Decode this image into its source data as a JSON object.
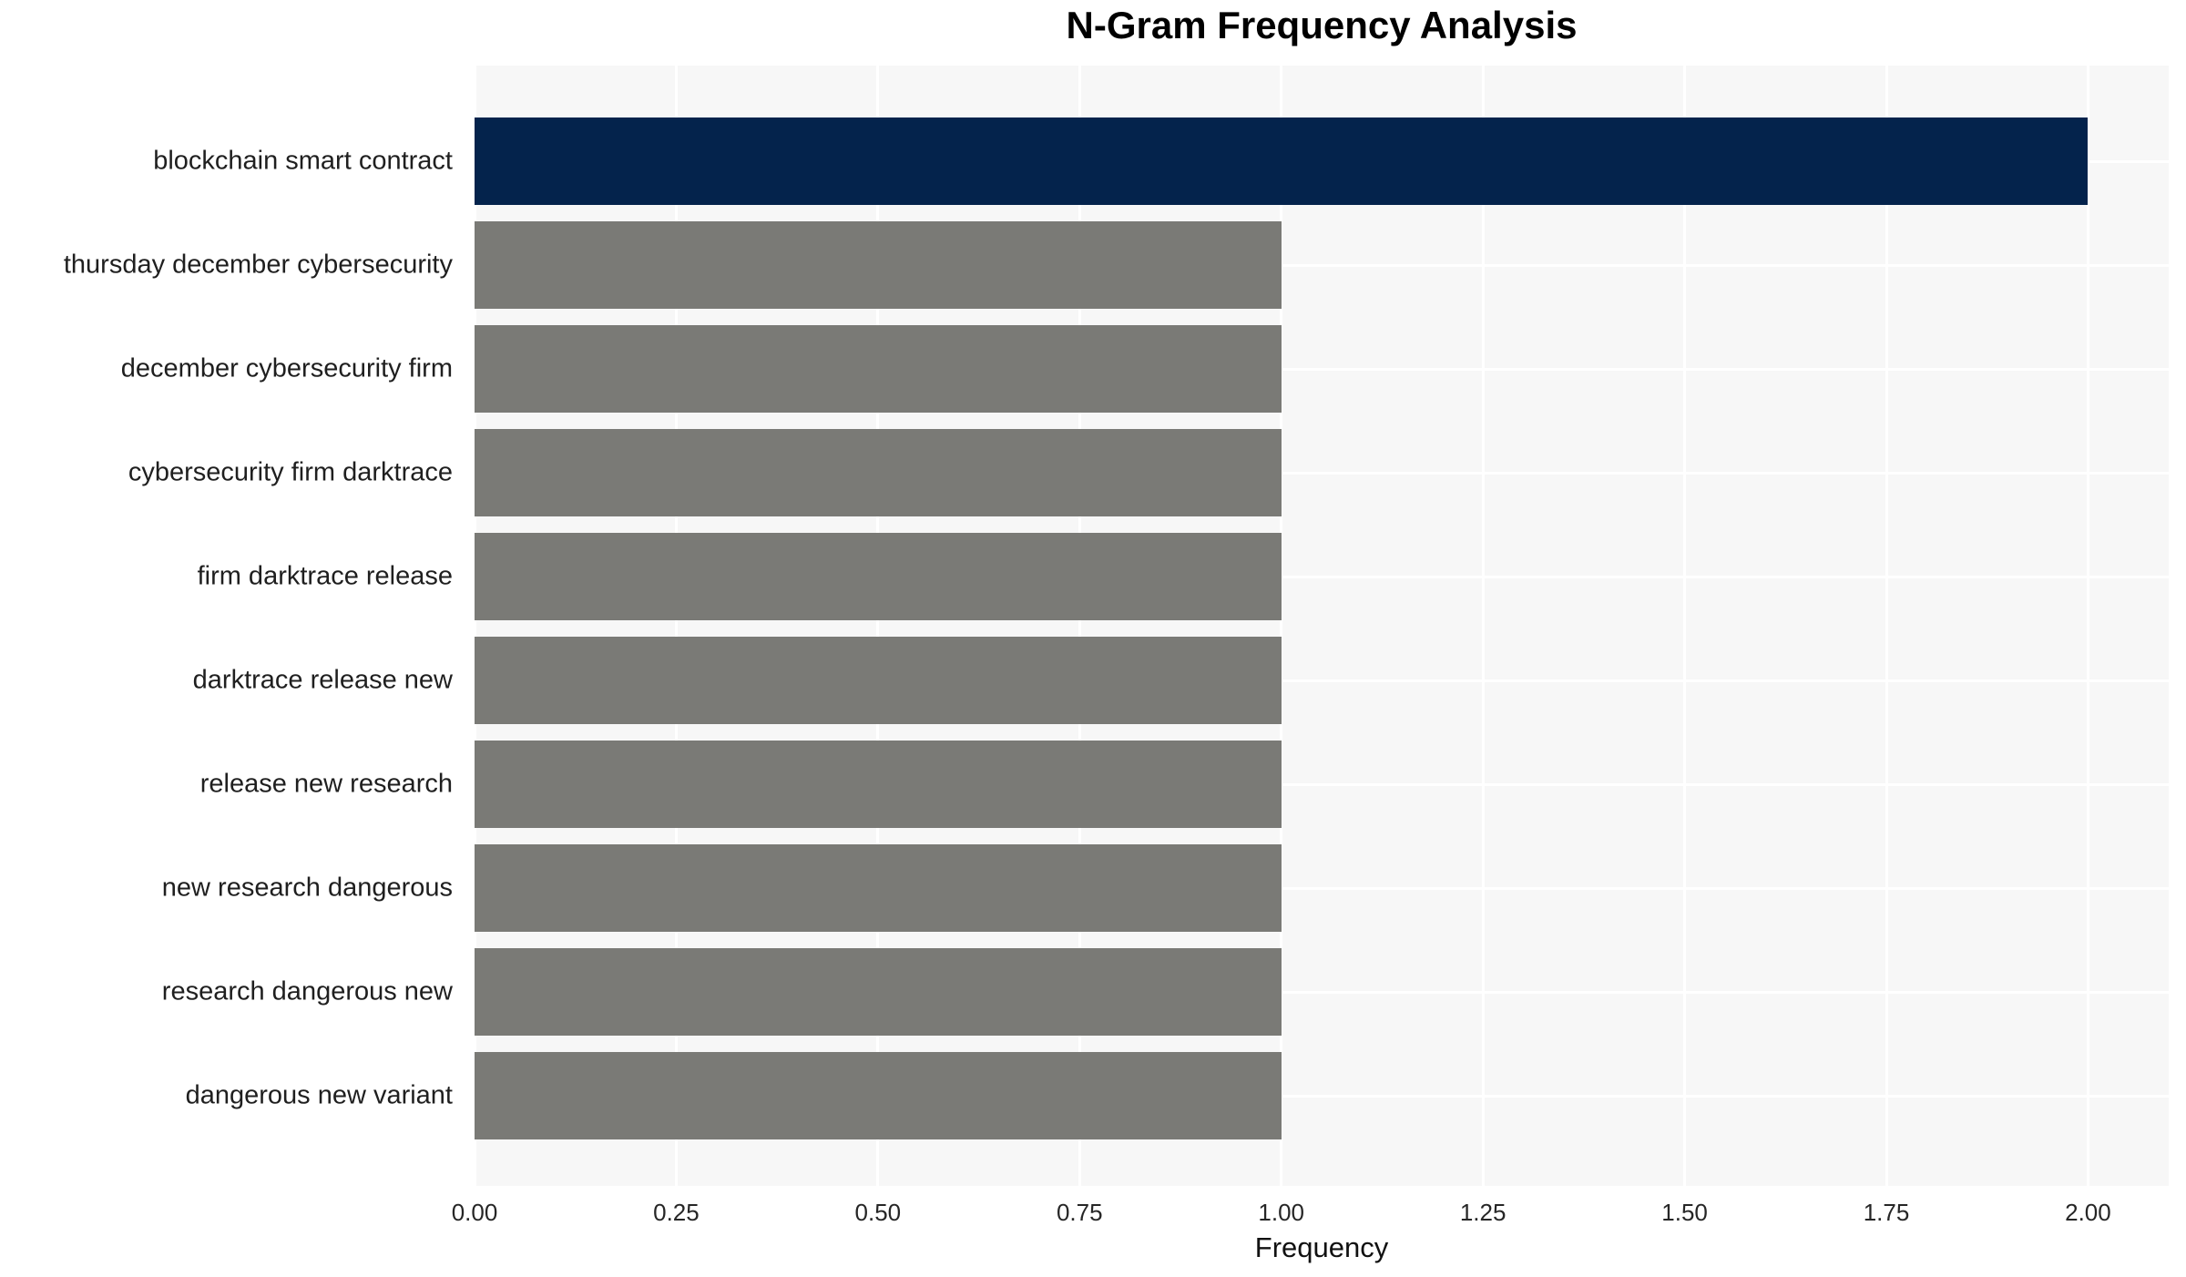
{
  "chart_data": {
    "type": "bar",
    "orientation": "horizontal",
    "title": "N-Gram Frequency Analysis",
    "xlabel": "Frequency",
    "ylabel": "",
    "categories": [
      "blockchain smart contract",
      "thursday december cybersecurity",
      "december cybersecurity firm",
      "cybersecurity firm darktrace",
      "firm darktrace release",
      "darktrace release new",
      "release new research",
      "new research dangerous",
      "research dangerous new",
      "dangerous new variant"
    ],
    "values": [
      2,
      1,
      1,
      1,
      1,
      1,
      1,
      1,
      1,
      1
    ],
    "bar_colors": [
      "#04234c",
      "#7a7a76",
      "#7a7a76",
      "#7a7a76",
      "#7a7a76",
      "#7a7a76",
      "#7a7a76",
      "#7a7a76",
      "#7a7a76",
      "#7a7a76"
    ],
    "x_ticks": [
      "0.00",
      "0.25",
      "0.50",
      "0.75",
      "1.00",
      "1.25",
      "1.50",
      "1.75",
      "2.00"
    ],
    "x_tick_values": [
      0,
      0.25,
      0.5,
      0.75,
      1.0,
      1.25,
      1.5,
      1.75,
      2.0
    ],
    "xlim": [
      0,
      2.1
    ],
    "grid": "on",
    "legend": "none",
    "colors": {
      "highlight_bar": "#04234c",
      "default_bar": "#7a7a76",
      "plot_background": "#f7f7f7",
      "gridline": "#ffffff",
      "title_text": "#000000",
      "tick_text": "#262626"
    }
  }
}
